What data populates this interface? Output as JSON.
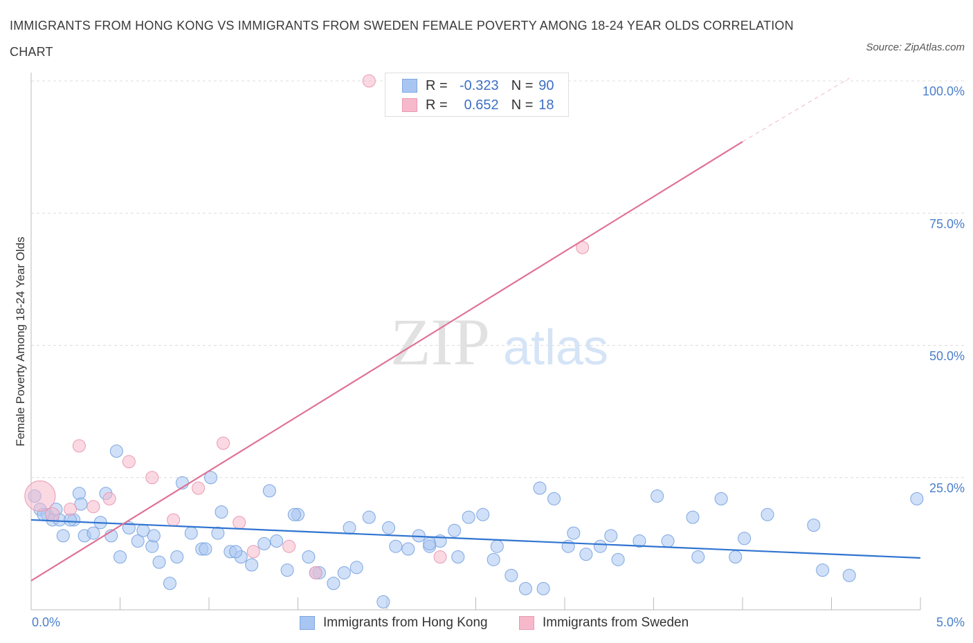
{
  "title": "IMMIGRANTS FROM HONG KONG VS IMMIGRANTS FROM SWEDEN FEMALE POVERTY AMONG 18-24 YEAR OLDS CORRELATION CHART",
  "source": "Source: ZipAtlas.com",
  "watermark": {
    "zip": "ZIP",
    "atlas": "atlas"
  },
  "legend_top": [
    {
      "r_label": "R =",
      "r_value": "-0.323",
      "n_label": "N =",
      "n_value": "90",
      "color": "#a9c6f2"
    },
    {
      "r_label": "R =",
      "r_value": "0.652",
      "n_label": "N =",
      "n_value": "18",
      "color": "#f6b9cc"
    }
  ],
  "legend_bottom": [
    {
      "label": "Immigrants from Hong Kong",
      "color": "#a9c6f2"
    },
    {
      "label": "Immigrants from Sweden",
      "color": "#f6b9cc"
    }
  ],
  "chart_data": {
    "type": "scatter",
    "title": "IMMIGRANTS FROM HONG KONG VS IMMIGRANTS FROM SWEDEN FEMALE POVERTY AMONG 18-24 YEAR OLDS CORRELATION CHART",
    "xlabel": "",
    "ylabel": "Female Poverty Among 18-24 Year Olds",
    "xlim": [
      0,
      5
    ],
    "ylim": [
      0,
      100
    ],
    "x_tick_labels": [
      "0.0%",
      "5.0%"
    ],
    "y_tick_labels": [
      "100.0%",
      "75.0%",
      "50.0%",
      "25.0%"
    ],
    "y_ticks": [
      100,
      75,
      50,
      25
    ],
    "grid": true,
    "legend_position": "top-center",
    "series": [
      {
        "name": "Immigrants from Hong Kong",
        "color": "#a9c6f2",
        "edge": "#7da6e0",
        "trend": {
          "x": [
            0,
            5
          ],
          "y": [
            17.0,
            9.8
          ],
          "color": "#2f74d0"
        },
        "x": [
          0.02,
          0.05,
          0.09,
          0.12,
          0.14,
          0.18,
          0.24,
          0.3,
          0.35,
          0.39,
          0.45,
          0.5,
          0.55,
          0.6,
          0.63,
          0.68,
          0.72,
          0.78,
          0.85,
          0.9,
          0.96,
          1.01,
          1.07,
          1.12,
          1.18,
          1.24,
          1.31,
          1.38,
          1.44,
          1.5,
          1.56,
          1.62,
          1.7,
          1.76,
          1.83,
          1.9,
          1.98,
          2.05,
          2.12,
          2.18,
          2.24,
          2.3,
          2.38,
          2.46,
          2.54,
          2.62,
          2.7,
          2.78,
          2.86,
          2.94,
          3.02,
          3.12,
          3.2,
          3.3,
          3.42,
          3.58,
          3.72,
          3.88,
          3.96,
          4.01,
          4.14,
          4.4,
          4.45,
          4.6,
          4.98,
          0.07,
          0.16,
          0.22,
          0.27,
          0.42,
          0.48,
          0.69,
          0.82,
          0.98,
          1.05,
          1.15,
          1.34,
          1.48,
          1.6,
          1.79,
          2.01,
          2.24,
          2.4,
          2.6,
          2.88,
          3.05,
          3.26,
          3.52,
          3.75,
          0.28
        ],
        "y": [
          21.5,
          19.0,
          18.0,
          17.0,
          19.0,
          14.0,
          17.0,
          14.0,
          14.5,
          16.5,
          14.0,
          10.0,
          15.5,
          13.0,
          15.0,
          12.0,
          9.0,
          5.0,
          24.0,
          14.5,
          11.5,
          25.0,
          18.5,
          11.0,
          10.0,
          8.5,
          12.5,
          13.0,
          7.5,
          18.0,
          10.0,
          7.0,
          5.0,
          7.0,
          8.0,
          17.5,
          1.5,
          12.0,
          11.5,
          14.0,
          12.0,
          13.0,
          15.0,
          17.5,
          18.0,
          12.0,
          6.5,
          4.0,
          23.0,
          21.0,
          12.0,
          10.5,
          12.0,
          9.5,
          13.0,
          13.0,
          17.5,
          21.0,
          10.0,
          13.5,
          18.0,
          16.0,
          7.5,
          6.5,
          21.0,
          18.0,
          17.0,
          17.0,
          22.0,
          22.0,
          30.0,
          14.0,
          10.0,
          11.5,
          14.5,
          11.0,
          22.5,
          18.0,
          7.0,
          15.5,
          15.5,
          12.5,
          10.0,
          9.5,
          4.0,
          14.5,
          14.0,
          21.5,
          10.0,
          20.0
        ]
      },
      {
        "name": "Immigrants from Sweden",
        "color": "#f6b9cc",
        "edge": "#e99ab3",
        "trend": {
          "x": [
            0,
            4.0
          ],
          "y": [
            5.5,
            88.5
          ],
          "color": "#e07196"
        },
        "trend_dashed": {
          "x": [
            4.0,
            4.6
          ],
          "y": [
            88.5,
            100.5
          ]
        },
        "x": [
          0.05,
          0.12,
          0.22,
          0.27,
          0.35,
          0.44,
          0.55,
          0.68,
          0.8,
          0.94,
          1.08,
          1.17,
          1.25,
          1.45,
          1.6,
          1.9,
          2.3,
          3.1
        ],
        "y": [
          21.5,
          18.0,
          19.0,
          31.0,
          19.5,
          21.0,
          28.0,
          25.0,
          17.0,
          23.0,
          31.5,
          16.5,
          11.0,
          12.0,
          7.0,
          100.0,
          10.0,
          68.5
        ],
        "sizes": [
          22,
          10,
          9,
          9,
          9,
          9,
          9,
          9,
          9,
          9,
          9,
          9,
          9,
          9,
          9,
          9,
          9,
          9
        ]
      }
    ]
  }
}
